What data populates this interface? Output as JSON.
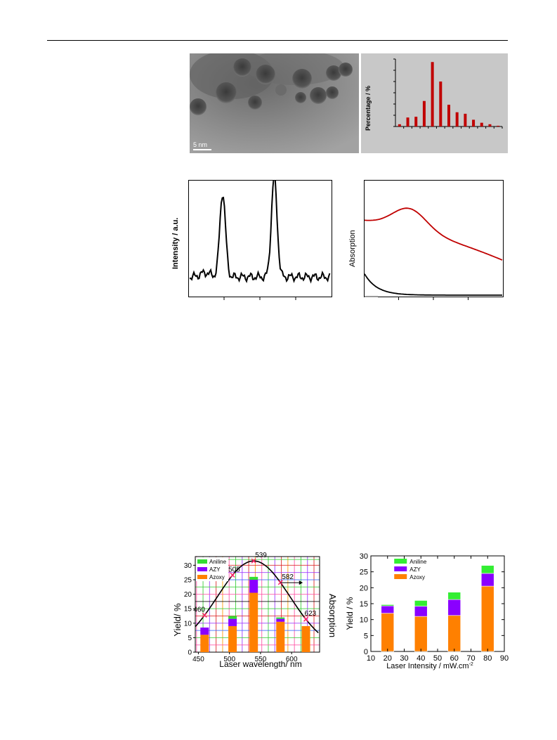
{
  "page": {
    "header_rule": true
  },
  "tem": {
    "scale_bar_label": "5 nm"
  },
  "hist": {
    "ylabel": "Percentage / %",
    "chart_data": {
      "type": "bar",
      "ylabel": "Percentage / %",
      "values": [
        3,
        12,
        13,
        34,
        86,
        60,
        29,
        19,
        17,
        9,
        5,
        3,
        1
      ],
      "ylim": [
        0,
        90
      ],
      "color": "#c00000"
    }
  },
  "raman": {
    "ylabel": "Intensity / a.u.",
    "chart_data": {
      "type": "line",
      "ylabel": "Intensity / a.u.",
      "color": "#000000",
      "peaks": [
        {
          "x_frac": 0.24,
          "height": 0.72
        },
        {
          "x_frac": 0.6,
          "height": 0.86
        }
      ]
    }
  },
  "absorb": {
    "ylabel": "Absorption",
    "chart_data": {
      "type": "line",
      "ylabel": "Absorption",
      "series": [
        {
          "color": "#c00000"
        },
        {
          "color": "#000000"
        }
      ]
    }
  },
  "wave": {
    "xlabel": "Laser wavelength/ nm",
    "ylabel": "Yield/ %",
    "y2label": "Absorption",
    "legend": [
      "Aniline",
      "AZY",
      "Azoxy"
    ],
    "colors": {
      "Aniline": "#33dd33",
      "AZY": "#8a00ff",
      "Azoxy": "#ff8000"
    },
    "xticks": [
      450,
      500,
      550,
      600
    ],
    "yticks": [
      0,
      5,
      10,
      15,
      20,
      25,
      30
    ],
    "annotations": [
      "460",
      "505",
      "539",
      "582",
      "623"
    ],
    "chart_data": {
      "type": "bar",
      "x": [
        460,
        505,
        539,
        582,
        623
      ],
      "series": [
        {
          "name": "Azoxy",
          "values": [
            6,
            9,
            20.5,
            10.5,
            9
          ]
        },
        {
          "name": "AZY",
          "values": [
            2.5,
            2.5,
            4.5,
            1,
            0
          ]
        },
        {
          "name": "Aniline",
          "values": [
            0,
            1,
            1,
            0.5,
            0
          ]
        }
      ],
      "xlim": [
        445,
        645
      ],
      "ylim": [
        0,
        33
      ],
      "xlabel": "Laser wavelength/ nm",
      "ylabel": "Yield/ %"
    }
  },
  "intensity": {
    "xlabel": "Laser Intensity / mW.cm",
    "xlabel_sup": "-2",
    "ylabel": "Yield / %",
    "legend": [
      "Aniline",
      "AZY",
      "Azoxy"
    ],
    "colors": {
      "Aniline": "#33ee33",
      "AZY": "#8a00ff",
      "Azoxy": "#ff8000"
    },
    "xticks": [
      10,
      20,
      30,
      40,
      50,
      60,
      70,
      80,
      90
    ],
    "yticks": [
      0,
      5,
      10,
      15,
      20,
      25,
      30
    ],
    "chart_data": {
      "type": "bar",
      "x": [
        20,
        40,
        60,
        80
      ],
      "series": [
        {
          "name": "Azoxy",
          "values": [
            12,
            11,
            11.3,
            20.5
          ]
        },
        {
          "name": "AZY",
          "values": [
            2.3,
            3.2,
            5,
            4
          ]
        },
        {
          "name": "Aniline",
          "values": [
            0.4,
            1.8,
            2.3,
            2.5
          ]
        }
      ],
      "xlim": [
        10,
        90
      ],
      "ylim": [
        0,
        30
      ],
      "xlabel": "Laser Intensity / mW.cm-2",
      "ylabel": "Yield / %"
    }
  }
}
